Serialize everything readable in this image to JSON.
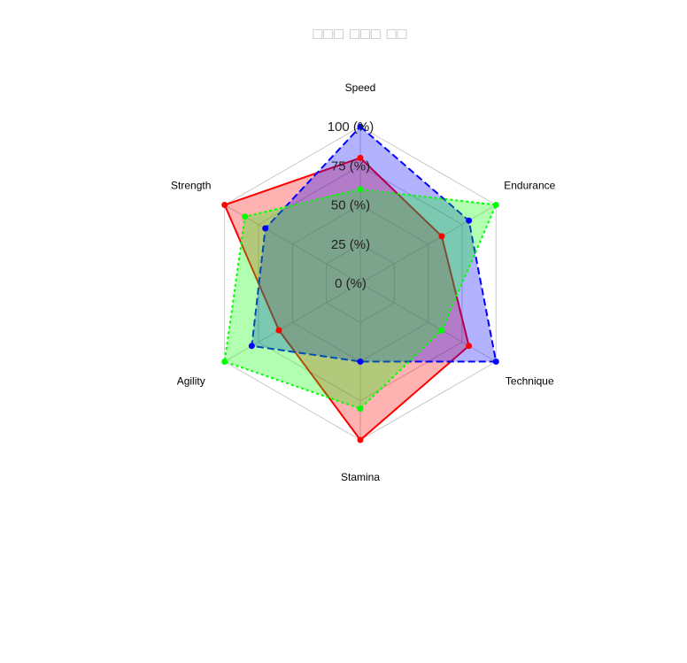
{
  "chart_data": {
    "type": "radar",
    "title": "□□□ □□□ □□",
    "axes": [
      "Speed",
      "Endurance",
      "Technique",
      "Stamina",
      "Agility",
      "Strength"
    ],
    "radial_ticks": [
      "0 (%)",
      "25 (%)",
      "50 (%)",
      "75 (%)",
      "100 (%)"
    ],
    "rlim": [
      0,
      100
    ],
    "series": [
      {
        "values": [
          80,
          60,
          80,
          100,
          60,
          100
        ],
        "color": "#ff0000",
        "fill": "#ff0000",
        "dash": "solid"
      },
      {
        "values": [
          100,
          80,
          100,
          50,
          80,
          70
        ],
        "color": "#0000ff",
        "fill": "#0000ff",
        "dash": "dashed"
      },
      {
        "values": [
          60,
          100,
          60,
          80,
          100,
          85
        ],
        "color": "#00ff00",
        "fill": "#00ff00",
        "dash": "dotted"
      }
    ]
  }
}
